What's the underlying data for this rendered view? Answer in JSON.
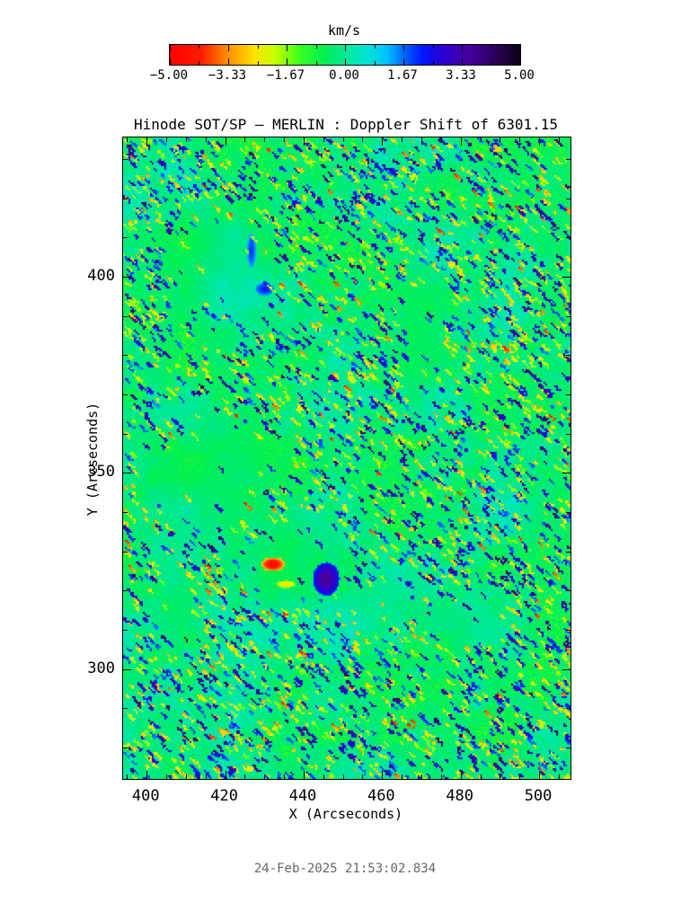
{
  "figure": {
    "background": "#ffffff",
    "text_color": "#000000",
    "timestamp": "24-Feb-2025 21:53:02.834",
    "timestamp_color": "#666666"
  },
  "chart_data": {
    "type": "heatmap",
    "title": "Hinode SOT/SP — MERLIN : Doppler Shift of 6301.15",
    "xlabel": "X (Arcseconds)",
    "ylabel": "Y (Arcseconds)",
    "x_range": [
      394,
      508
    ],
    "y_range": [
      272,
      435.5
    ],
    "x_ticks": {
      "major": [
        400,
        420,
        440,
        460,
        480,
        500
      ],
      "labels": [
        "400",
        "420",
        "440",
        "460",
        "480",
        "500"
      ],
      "minor_step": 5
    },
    "y_ticks": {
      "major": [
        400,
        350,
        300
      ],
      "labels": [
        "400",
        "350",
        "300"
      ],
      "minor_step": 10
    },
    "value_range": [
      -5,
      5
    ],
    "value_units": "km/s",
    "grid": false,
    "legend": "colorbar-top",
    "colorbar": {
      "label": "km/s",
      "tick_labels": [
        "−5.00",
        "−3.33",
        "−1.67",
        "0.00",
        "1.67",
        "3.33",
        "5.00"
      ],
      "tick_values": [
        -5,
        -3.33,
        -1.67,
        0,
        1.67,
        3.33,
        5
      ]
    },
    "colormap": [
      {
        "t": 0.0,
        "c": "#ff0000"
      },
      {
        "t": 0.09,
        "c": "#ff1c00"
      },
      {
        "t": 0.16,
        "c": "#ff8800"
      },
      {
        "t": 0.24,
        "c": "#ffe100"
      },
      {
        "t": 0.3,
        "c": "#c8ff00"
      },
      {
        "t": 0.37,
        "c": "#3cff1e"
      },
      {
        "t": 0.44,
        "c": "#00f050"
      },
      {
        "t": 0.5,
        "c": "#00e896"
      },
      {
        "t": 0.56,
        "c": "#00e6d2"
      },
      {
        "t": 0.62,
        "c": "#00c0ff"
      },
      {
        "t": 0.67,
        "c": "#0064ff"
      },
      {
        "t": 0.72,
        "c": "#0018ff"
      },
      {
        "t": 0.78,
        "c": "#2a00d2"
      },
      {
        "t": 0.85,
        "c": "#4600a0"
      },
      {
        "t": 0.92,
        "c": "#300064"
      },
      {
        "t": 1.0,
        "c": "#0c0014"
      }
    ],
    "field_description": "Solar photospheric Doppler-velocity map: near-zero (green/cyan) granulation background peppered with small blueshift (blue/purple) and redshift (yellow/orange) speckles elongated diagonally; smoother low-noise plage lanes; a strong redshift kernel near (430, 326) arcsec flanked on the right by a blueshift patch near (446, 325).",
    "render": {
      "seed": 987613,
      "cell": 2,
      "base": -0.25,
      "octaves": [
        {
          "scale": 60,
          "amp": 0.45
        },
        {
          "scale": 18,
          "amp": 0.3
        }
      ],
      "jitter": 0.9,
      "speckle_prob": 0.045,
      "pos_fraction": 0.55
    },
    "smooth_regions": [
      {
        "cx": 0.21,
        "cy": 0.2,
        "rx": 0.15,
        "ry": 0.13
      },
      {
        "cx": 0.19,
        "cy": 0.53,
        "rx": 0.22,
        "ry": 0.13
      },
      {
        "cx": 0.37,
        "cy": 0.66,
        "rx": 0.15,
        "ry": 0.1
      },
      {
        "cx": 0.66,
        "cy": 0.3,
        "rx": 0.06,
        "ry": 0.13
      },
      {
        "cx": 0.58,
        "cy": 0.72,
        "rx": 0.13,
        "ry": 0.055
      },
      {
        "cx": 0.76,
        "cy": 0.75,
        "rx": 0.12,
        "ry": 0.045
      },
      {
        "cx": 0.12,
        "cy": 0.73,
        "rx": 0.08,
        "ry": 0.07
      }
    ],
    "features": [
      {
        "name": "redshift-kernel",
        "fx": 0.333,
        "fy": 0.664,
        "rx": 0.027,
        "ry": 0.011,
        "v": -4.7,
        "force": true
      },
      {
        "name": "redshift-hook",
        "fx": 0.362,
        "fy": 0.695,
        "rx": 0.022,
        "ry": 0.006,
        "v": -2.6,
        "force": true
      },
      {
        "name": "blueshift-patch",
        "fx": 0.452,
        "fy": 0.687,
        "rx": 0.03,
        "ry": 0.026,
        "v": 3.6,
        "force": true
      },
      {
        "name": "fan-blue-streak-1",
        "fx": 0.285,
        "fy": 0.175,
        "rx": 0.01,
        "ry": 0.028,
        "v": 2.0,
        "force": false
      },
      {
        "name": "fan-blue-streak-2",
        "fx": 0.315,
        "fy": 0.235,
        "rx": 0.022,
        "ry": 0.01,
        "v": 2.2,
        "force": false
      }
    ]
  }
}
